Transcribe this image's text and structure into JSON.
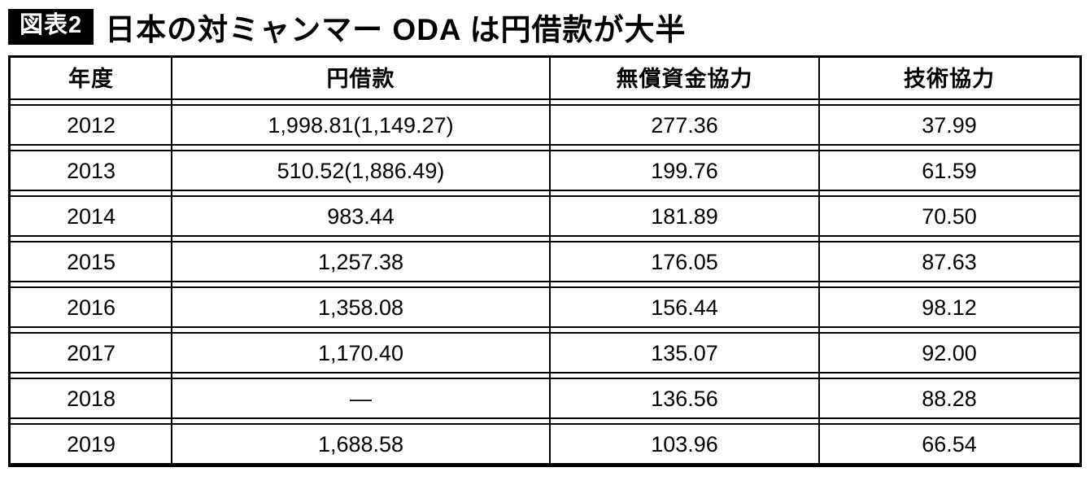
{
  "title": {
    "badge": "図表2",
    "text": "日本の対ミャンマー ODA は円借款が大半"
  },
  "chart_data": {
    "type": "table",
    "columns": [
      "年度",
      "円借款",
      "無償資金協力",
      "技術協力"
    ],
    "rows": [
      [
        "2012",
        "1,998.81(1,149.27)",
        "277.36",
        "37.99"
      ],
      [
        "2013",
        "510.52(1,886.49)",
        "199.76",
        "61.59"
      ],
      [
        "2014",
        "983.44",
        "181.89",
        "70.50"
      ],
      [
        "2015",
        "1,257.38",
        "176.05",
        "87.63"
      ],
      [
        "2016",
        "1,358.08",
        "156.44",
        "98.12"
      ],
      [
        "2017",
        "1,170.40",
        "135.07",
        "92.00"
      ],
      [
        "2018",
        "—",
        "136.56",
        "88.28"
      ],
      [
        "2019",
        "1,688.58",
        "103.96",
        "66.54"
      ]
    ]
  },
  "colors": {
    "badge_bg": "#000000",
    "badge_text": "#ffffff",
    "border": "#000000",
    "text": "#000000",
    "background": "#ffffff"
  }
}
